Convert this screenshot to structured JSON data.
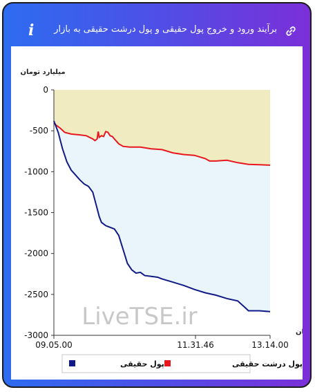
{
  "header": {
    "title": "برآیند ورود و خروج پول حقیقی و پول درشت حقیقی به بازار",
    "info_icon": "info-icon",
    "link_icon": "link-icon"
  },
  "watermark": "LiveTSE.ir",
  "chart_data": {
    "type": "area",
    "ylabel": "میلیارد تومان",
    "xlabel": "زمان",
    "ylim": [
      -3000,
      0
    ],
    "yticks": [
      "0",
      "-500",
      "-1000",
      "-1500",
      "-2000",
      "-2500",
      "-3000"
    ],
    "xticks": [
      "09.05.00",
      "11.31.46",
      "13.14.00"
    ],
    "legend_position": "bottom",
    "series": [
      {
        "name": "پول درشت حقیقی",
        "color": "#e8161d",
        "fill": "#f0ebc0",
        "fill_to": "top",
        "x": [
          0,
          0.01,
          0.03,
          0.05,
          0.08,
          0.12,
          0.15,
          0.18,
          0.19,
          0.2,
          0.205,
          0.21,
          0.22,
          0.23,
          0.24,
          0.25,
          0.26,
          0.27,
          0.28,
          0.3,
          0.32,
          0.35,
          0.4,
          0.45,
          0.5,
          0.55,
          0.6,
          0.65,
          0.7,
          0.72,
          0.75,
          0.8,
          0.85,
          0.9,
          0.95,
          1
        ],
        "values": [
          -400,
          -430,
          -470,
          -520,
          -540,
          -550,
          -560,
          -600,
          -620,
          -600,
          -510,
          -580,
          -560,
          -570,
          -510,
          -520,
          -560,
          -570,
          -600,
          -660,
          -690,
          -700,
          -700,
          -720,
          -730,
          -770,
          -790,
          -800,
          -840,
          -870,
          -870,
          -860,
          -890,
          -910,
          -915,
          -920
        ]
      },
      {
        "name": "پول حقیقی",
        "color": "#0f1a86",
        "fill": "#eaf4fb",
        "fill_to": "series:پول درشت حقیقی",
        "x": [
          0,
          0.02,
          0.04,
          0.06,
          0.08,
          0.1,
          0.12,
          0.14,
          0.16,
          0.18,
          0.2,
          0.21,
          0.22,
          0.24,
          0.26,
          0.28,
          0.3,
          0.32,
          0.34,
          0.36,
          0.38,
          0.4,
          0.42,
          0.45,
          0.48,
          0.5,
          0.55,
          0.6,
          0.65,
          0.7,
          0.75,
          0.8,
          0.85,
          0.88,
          0.9,
          0.95,
          1
        ],
        "values": [
          -380,
          -520,
          -720,
          -880,
          -980,
          -1040,
          -1100,
          -1150,
          -1180,
          -1250,
          -1450,
          -1550,
          -1620,
          -1660,
          -1680,
          -1700,
          -1780,
          -1950,
          -2120,
          -2200,
          -2240,
          -2230,
          -2270,
          -2280,
          -2290,
          -2310,
          -2350,
          -2390,
          -2440,
          -2480,
          -2510,
          -2550,
          -2580,
          -2650,
          -2700,
          -2700,
          -2710
        ]
      }
    ]
  }
}
